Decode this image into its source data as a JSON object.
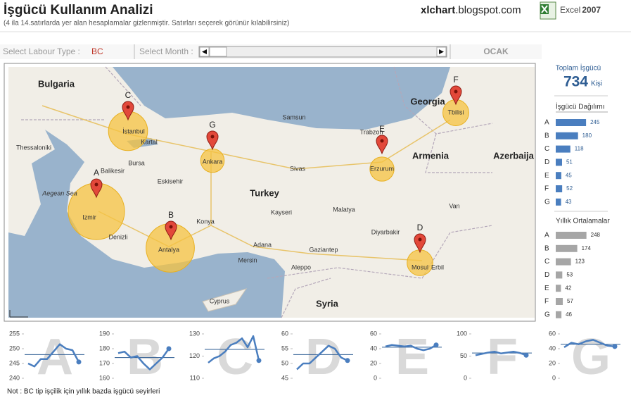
{
  "header": {
    "title": "İşgücü Kullanım Analizi",
    "subtitle": "(4 ila 14.satırlarda yer alan hesaplamalar gizlenmiştir. Satırları seçerek görünür kılabilirsiniz)",
    "site_bold": "xlchart",
    "site_rest": ".blogspot.com",
    "product": "Excel",
    "version": "2007"
  },
  "controls": {
    "labour_label": "Select Labour Type :",
    "labour_value": "BC",
    "month_label": "Select Month :",
    "month_value": "OCAK"
  },
  "summary": {
    "label": "Toplam İşgücü",
    "value": 734,
    "unit": "Kişi"
  },
  "map": {
    "labels": [
      "Bulgaria",
      "Georgia",
      "Armenia",
      "Azerbaija",
      "Turkey",
      "Syria",
      "Cyprus",
      "Thessaloniki",
      "İstanbul",
      "Ankara",
      "Erzurum",
      "Izmir",
      "Antalya",
      "Mosul",
      "Tbilisi",
      "Konya",
      "Bursa",
      "Sivas",
      "Adana",
      "Mersin",
      "Aleppo",
      "Erbil",
      "Samsun",
      "Trabzon",
      "Van",
      "Malatya",
      "Kayseri",
      "Diyarbakir",
      "Eskisehir",
      "Denizli",
      "Gaziantep",
      "Balikesir",
      "Aegean Sea",
      "Kartal"
    ]
  },
  "note": "Not : BC tip işçilik için yıllık bazda işgücü seyirleri",
  "chart_data": [
    {
      "type": "hbar",
      "title": "İşgücü Dağılımı",
      "categories": [
        "A",
        "B",
        "C",
        "D",
        "E",
        "F",
        "G"
      ],
      "values": [
        245,
        180,
        118,
        51,
        45,
        52,
        43
      ],
      "color": "#4a7ebf"
    },
    {
      "type": "hbar",
      "title": "Yıllık Ortalamalar",
      "categories": [
        "A",
        "B",
        "C",
        "D",
        "E",
        "F",
        "G"
      ],
      "values": [
        248,
        174,
        123,
        53,
        42,
        57,
        46
      ],
      "color": "#a6a6a6"
    },
    {
      "type": "line",
      "title": "A",
      "ylim": [
        240,
        255
      ],
      "yticks": [
        240,
        245,
        250,
        255
      ],
      "values": [
        245,
        244,
        246.5,
        246.5,
        249,
        251.5,
        250,
        249.5,
        245.5
      ],
      "reference": 248,
      "color": "#4a7ebf"
    },
    {
      "type": "line",
      "title": "B",
      "ylim": [
        160,
        190
      ],
      "yticks": [
        160,
        170,
        180,
        190
      ],
      "values": [
        177,
        178,
        174,
        175,
        170,
        166,
        170,
        174,
        180
      ],
      "reference": 174,
      "color": "#4a7ebf"
    },
    {
      "type": "line",
      "title": "C",
      "ylim": [
        110,
        130
      ],
      "yticks": [
        110,
        120,
        130
      ],
      "values": [
        117,
        119,
        120,
        122,
        125,
        126,
        128,
        124,
        129,
        118
      ],
      "reference": 123,
      "color": "#4a7ebf"
    },
    {
      "type": "line",
      "title": "D",
      "ylim": [
        45,
        60
      ],
      "yticks": [
        45,
        50,
        55,
        60
      ],
      "values": [
        48,
        50,
        50,
        52,
        54,
        56,
        55,
        52,
        51
      ],
      "reference": 53,
      "color": "#4a7ebf"
    },
    {
      "type": "line",
      "title": "E",
      "ylim": [
        0,
        60
      ],
      "yticks": [
        0,
        20,
        40,
        60
      ],
      "values": [
        43,
        45,
        44,
        43,
        44,
        40,
        38,
        40,
        45
      ],
      "reference": 42,
      "color": "#4a7ebf"
    },
    {
      "type": "line",
      "title": "F",
      "ylim": [
        0,
        100
      ],
      "yticks": [
        0,
        50,
        100
      ],
      "values": [
        52,
        55,
        58,
        60,
        56,
        58,
        60,
        57,
        52
      ],
      "reference": 57,
      "color": "#4a7ebf"
    },
    {
      "type": "line",
      "title": "G",
      "ylim": [
        0,
        60
      ],
      "yticks": [
        0,
        20,
        40,
        60
      ],
      "values": [
        42,
        48,
        46,
        50,
        52,
        48,
        44,
        43
      ],
      "reference": 46,
      "color": "#4a7ebf"
    }
  ]
}
